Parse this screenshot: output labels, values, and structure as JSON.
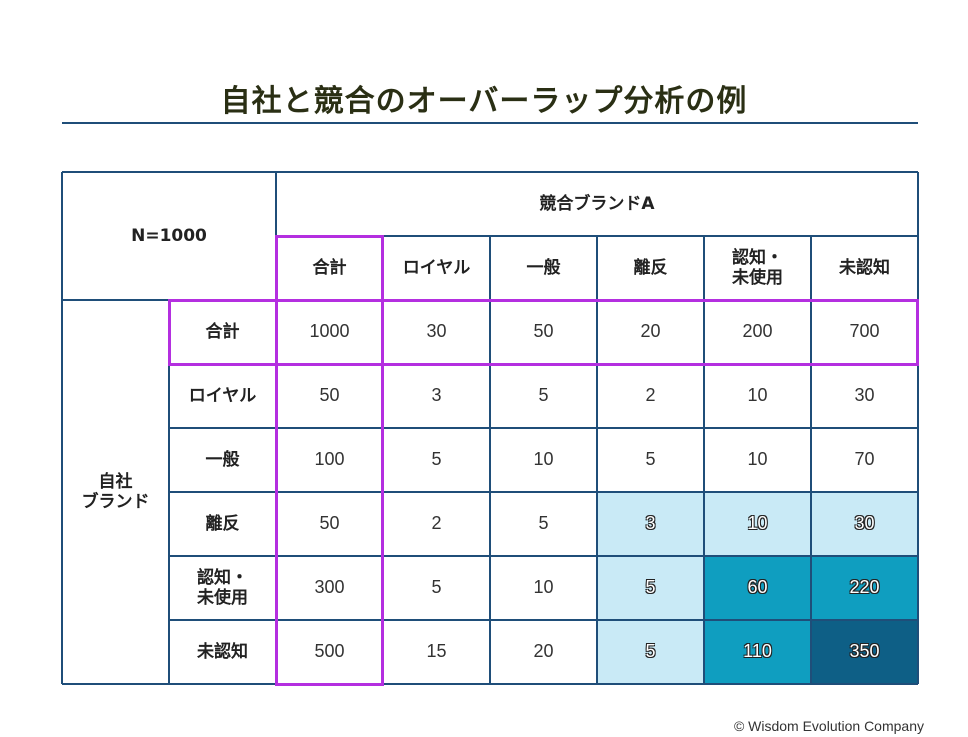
{
  "title": "自社と競合のオーバーラップ分析の例",
  "table": {
    "corner_label": "N=1000",
    "competitor_label": "競合ブランドA",
    "own_label": "自社\nブランド",
    "col_headers": [
      "合計",
      "ロイヤル",
      "一般",
      "離反",
      "認知・\n未使用",
      "未認知"
    ],
    "row_headers": [
      "合計",
      "ロイヤル",
      "一般",
      "離反",
      "認知・\n未使用",
      "未認知"
    ],
    "rows": [
      [
        "1000",
        "30",
        "50",
        "20",
        "200",
        "700"
      ],
      [
        "50",
        "3",
        "5",
        "2",
        "10",
        "30"
      ],
      [
        "100",
        "5",
        "10",
        "5",
        "10",
        "70"
      ],
      [
        "50",
        "2",
        "5",
        "3",
        "10",
        "30"
      ],
      [
        "300",
        "5",
        "10",
        "5",
        "60",
        "220"
      ],
      [
        "500",
        "15",
        "20",
        "5",
        "110",
        "350"
      ]
    ]
  },
  "colors": {
    "grid": "#1f4e79",
    "highlight": "#b42fe0",
    "light_cell": "#c9eaf6",
    "mid_cell": "#0f9ec0",
    "dark_cell": "#0e5f86"
  },
  "footer": "© Wisdom Evolution Company"
}
